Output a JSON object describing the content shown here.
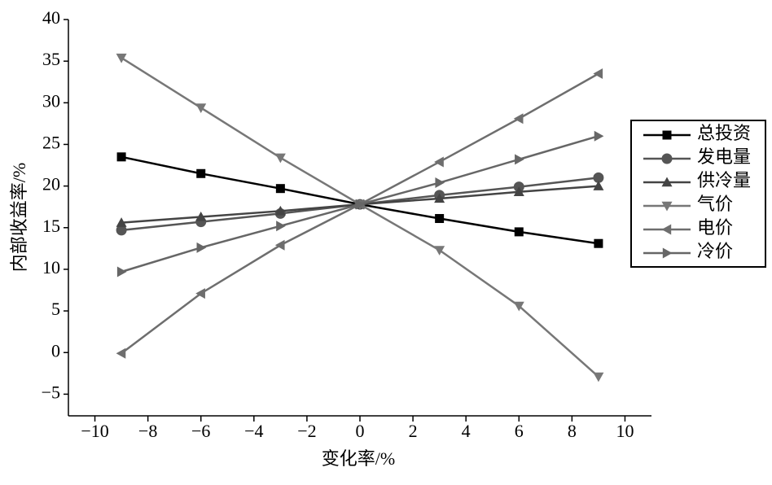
{
  "chart_data": {
    "type": "line",
    "x_label": "变化率/%",
    "y_label": "内部收益率/%",
    "x": [
      -9,
      -6,
      -3,
      0,
      3,
      6,
      9
    ],
    "series": [
      {
        "name": "总投资",
        "color": "#000000",
        "marker": "square",
        "values": [
          23.5,
          21.5,
          19.7,
          17.8,
          16.1,
          14.5,
          13.1
        ]
      },
      {
        "name": "发电量",
        "color": "#555555",
        "marker": "circle",
        "values": [
          14.7,
          15.7,
          16.7,
          17.8,
          18.9,
          19.9,
          21.0
        ]
      },
      {
        "name": "供冷量",
        "color": "#444444",
        "marker": "triangle-up",
        "values": [
          15.6,
          16.3,
          17.0,
          17.8,
          18.5,
          19.3,
          20.0
        ]
      },
      {
        "name": "气价",
        "color": "#777777",
        "marker": "triangle-down",
        "values": [
          35.4,
          29.4,
          23.4,
          17.8,
          12.3,
          5.6,
          -2.9
        ]
      },
      {
        "name": "电价",
        "color": "#6e6e6e",
        "marker": "triangle-left",
        "values": [
          -0.1,
          7.1,
          12.9,
          17.8,
          22.9,
          28.1,
          33.5
        ]
      },
      {
        "name": "冷价",
        "color": "#666666",
        "marker": "triangle-right",
        "values": [
          9.7,
          12.6,
          15.2,
          17.8,
          20.4,
          23.2,
          26.0
        ]
      }
    ],
    "xlim": [
      -11,
      11
    ],
    "xticks": [
      {
        "value": -10,
        "label": "−10"
      },
      {
        "value": -8,
        "label": "−8"
      },
      {
        "value": -6,
        "label": "−6"
      },
      {
        "value": -4,
        "label": "−4"
      },
      {
        "value": -2,
        "label": "−2"
      },
      0,
      2,
      4,
      6,
      8,
      10
    ],
    "ylim": [
      -7.6,
      40
    ],
    "yticks": [
      {
        "value": -5,
        "label": "−5"
      },
      0,
      5,
      10,
      15,
      20,
      25,
      30,
      35,
      40
    ],
    "grid": false,
    "legend": "right"
  }
}
